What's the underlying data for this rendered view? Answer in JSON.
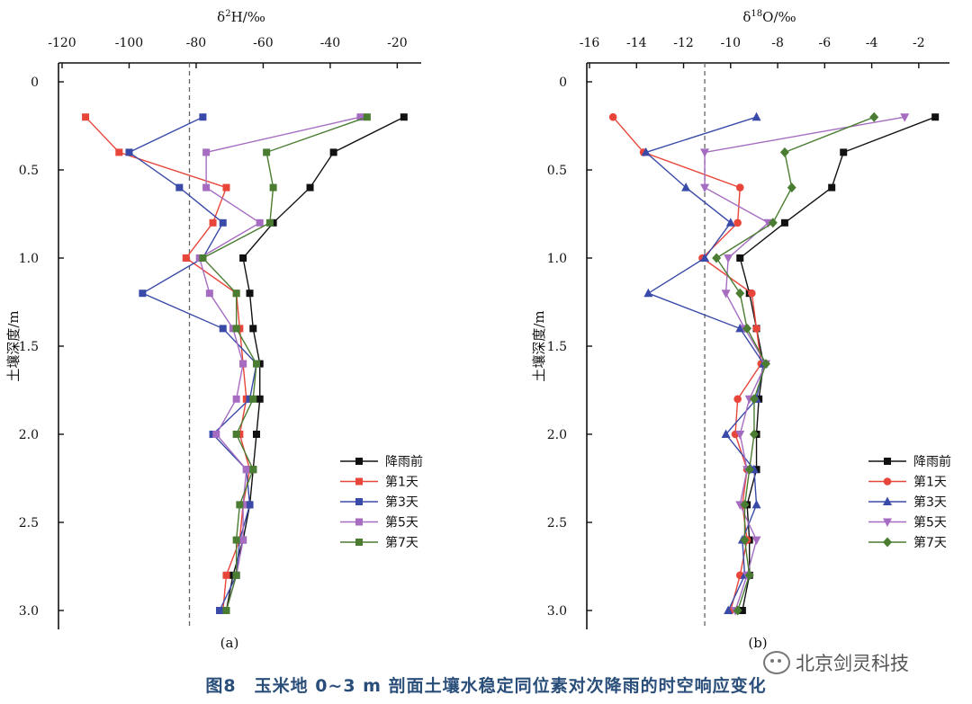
{
  "figure": {
    "caption": "图8　玉米地 0~3 m 剖面土壤水稳定同位素对次降雨的时空响应变化",
    "watermark": "北京剑灵科技",
    "watermark_icon": "wechat-icon"
  },
  "chart_data": [
    {
      "type": "line",
      "panel_label": "(a)",
      "xlabel_base": "δ",
      "xlabel_sup": "2",
      "xlabel_rest": "H/‰",
      "ylabel": "土壤深度/m",
      "xlim": [
        -120,
        -15
      ],
      "ylim": [
        0,
        3.0
      ],
      "xticks": [
        -120,
        -100,
        -80,
        -60,
        -40,
        -20
      ],
      "yticks": [
        0,
        0.5,
        1.0,
        1.5,
        2.0,
        2.5,
        3.0
      ],
      "yticklabels": [
        "0",
        "0.5",
        "1.0",
        "1.5",
        "2.0",
        "2.5",
        "3.0"
      ],
      "reference_line_x": -82,
      "depths": [
        0.2,
        0.4,
        0.6,
        0.8,
        1.0,
        1.2,
        1.4,
        1.6,
        1.8,
        2.0,
        2.2,
        2.4,
        2.6,
        2.8,
        3.0
      ],
      "series": [
        {
          "name": "降雨前",
          "color": "#111111",
          "marker": "square",
          "values": [
            -18,
            -39,
            -46,
            -57,
            -66,
            -64,
            -63,
            -61,
            -61,
            -62,
            -63,
            -64,
            -66,
            -69,
            -71
          ]
        },
        {
          "name": "第1天",
          "color": "#e8463a",
          "marker": "square",
          "values": [
            -113,
            -103,
            -71,
            -75,
            -83,
            -68,
            -67,
            -66,
            -65,
            -67,
            -64,
            -66,
            -67,
            -71,
            -72
          ]
        },
        {
          "name": "第3天",
          "color": "#3a4aa8",
          "marker": "square",
          "values": [
            -78,
            -100,
            -85,
            -72,
            -78,
            -96,
            -72,
            -62,
            -64,
            -75,
            -65,
            -64,
            -67,
            -68,
            -73
          ]
        },
        {
          "name": "第5天",
          "color": "#a56cc1",
          "marker": "square",
          "values": [
            -31,
            -77,
            -77,
            -61,
            -79,
            -76,
            -69,
            -66,
            -68,
            -74,
            -65,
            -66,
            -66,
            -68,
            -71
          ]
        },
        {
          "name": "第7天",
          "color": "#4a7d32",
          "marker": "square",
          "values": [
            -29,
            -59,
            -57,
            -58,
            -78,
            -68,
            -68,
            -62,
            -63,
            -68,
            -63,
            -67,
            -68,
            -68,
            -71
          ]
        }
      ]
    },
    {
      "type": "line",
      "panel_label": "(b)",
      "xlabel_base": "δ",
      "xlabel_sup": "18",
      "xlabel_rest": "O/‰",
      "ylabel": "土壤深度/m",
      "xlim": [
        -16,
        -1
      ],
      "ylim": [
        0,
        3.0
      ],
      "xticks": [
        -16,
        -14,
        -12,
        -10,
        -8,
        -6,
        -4,
        -2
      ],
      "yticks": [
        0,
        0.5,
        1.0,
        1.5,
        2.0,
        2.5,
        3.0
      ],
      "yticklabels": [
        "0",
        "0.5",
        "1.0",
        "1.5",
        "2.0",
        "2.5",
        "3.0"
      ],
      "reference_line_x": -11.1,
      "depths": [
        0.2,
        0.4,
        0.6,
        0.8,
        1.0,
        1.2,
        1.4,
        1.6,
        1.8,
        2.0,
        2.2,
        2.4,
        2.6,
        2.8,
        3.0
      ],
      "series": [
        {
          "name": "降雨前",
          "color": "#111111",
          "marker": "square",
          "values": [
            -1.3,
            -5.2,
            -5.7,
            -7.7,
            -9.6,
            -9.2,
            -8.9,
            -8.6,
            -8.8,
            -8.9,
            -8.9,
            -9.3,
            -9.2,
            -9.2,
            -9.5
          ]
        },
        {
          "name": "第1天",
          "color": "#e8463a",
          "marker": "circle",
          "values": [
            -15.0,
            -13.7,
            -9.6,
            -9.7,
            -11.2,
            -9.1,
            -8.9,
            -8.7,
            -9.7,
            -9.8,
            -9.3,
            -9.5,
            -9.3,
            -9.6,
            -10.0
          ]
        },
        {
          "name": "第3天",
          "color": "#3a4aa8",
          "marker": "triangle-up",
          "values": [
            -8.9,
            -13.6,
            -11.9,
            -10.0,
            -11.1,
            -13.5,
            -9.6,
            -8.6,
            -8.9,
            -10.2,
            -9.0,
            -8.9,
            -9.5,
            -9.4,
            -10.1
          ]
        },
        {
          "name": "第5天",
          "color": "#a56cc1",
          "marker": "triangle-down",
          "values": [
            -2.6,
            -11.1,
            -11.1,
            -8.4,
            -10.1,
            -10.2,
            -9.4,
            -8.5,
            -9.2,
            -9.6,
            -9.3,
            -9.6,
            -8.9,
            -9.3,
            -9.8
          ]
        },
        {
          "name": "第7天",
          "color": "#4a7d32",
          "marker": "diamond",
          "values": [
            -3.9,
            -7.7,
            -7.4,
            -8.2,
            -10.6,
            -9.6,
            -9.3,
            -8.5,
            -9.0,
            -9.0,
            -9.2,
            -9.4,
            -9.4,
            -9.2,
            -9.7
          ]
        }
      ]
    }
  ]
}
